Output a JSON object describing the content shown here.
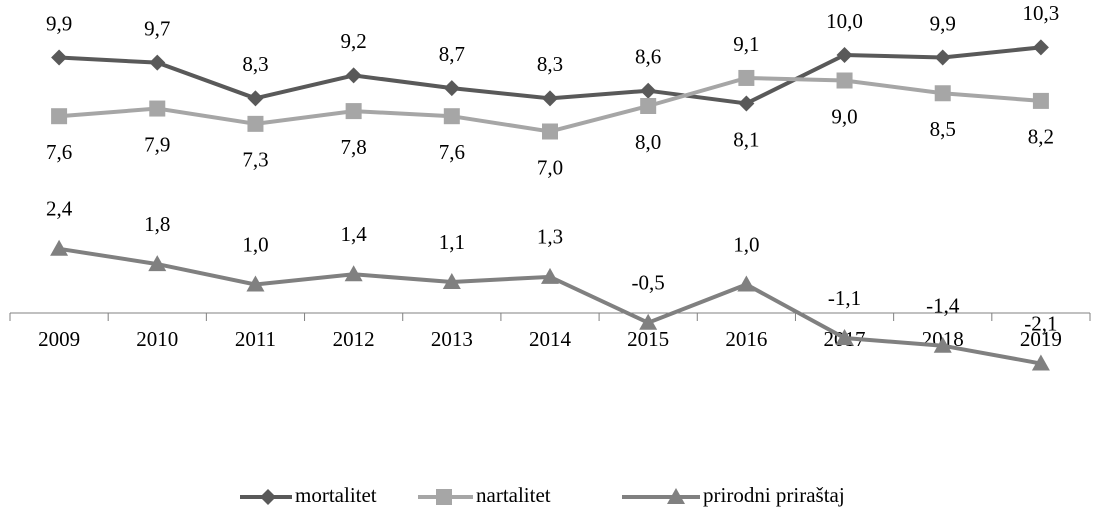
{
  "chart_data": {
    "type": "line",
    "categories": [
      "2009",
      "2010",
      "2011",
      "2012",
      "2013",
      "2014",
      "2015",
      "2016",
      "2017",
      "2018",
      "2019"
    ],
    "series": [
      {
        "name": "mortalitet",
        "color": "#595959",
        "marker": "diamond",
        "values": [
          9.9,
          9.7,
          8.3,
          9.2,
          8.7,
          8.3,
          8.6,
          8.1,
          10.0,
          9.9,
          10.3
        ],
        "value_labels": [
          "9,9",
          "9,7",
          "8,3",
          "9,2",
          "8,7",
          "8,3",
          "8,6",
          "8,1",
          "10,0",
          "9,9",
          "10,3"
        ]
      },
      {
        "name": "nartalitet",
        "color": "#a6a6a6",
        "marker": "square",
        "values": [
          7.6,
          7.9,
          7.3,
          7.8,
          7.6,
          7.0,
          8.0,
          9.1,
          9.0,
          8.5,
          8.2
        ],
        "value_labels": [
          "7,6",
          "7,9",
          "7,3",
          "7,8",
          "7,6",
          "7,0",
          "8,0",
          "9,1",
          "9,0",
          "8,5",
          "8,2"
        ]
      },
      {
        "name": "prirodni priraštaj",
        "color": "#808080",
        "marker": "triangle",
        "values": [
          2.4,
          1.8,
          1.0,
          1.4,
          1.1,
          1.3,
          -0.5,
          1.0,
          -1.1,
          -1.4,
          -2.1
        ],
        "value_labels": [
          "2,4",
          "1,8",
          "1,0",
          "1,4",
          "1,1",
          "1,3",
          "-0,5",
          "1,0",
          "-1,1",
          "-1,4",
          "-2,1"
        ]
      }
    ],
    "legend": "bottom"
  }
}
